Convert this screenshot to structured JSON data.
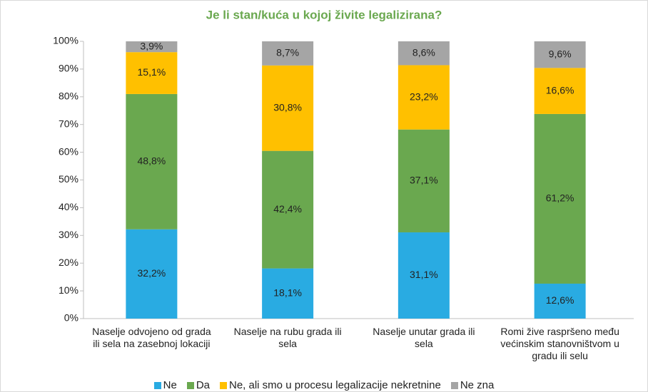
{
  "chart_data": {
    "type": "stacked_bar",
    "title": "Je li stan/kuća u kojoj živite legalizirana?",
    "categories": [
      "Naselje odvojeno od grada ili sela na zasebnoj lokaciji",
      "Naselje na rubu grada ili sela",
      "Naselje unutar grada ili sela",
      "Romi žive raspršeno među većinskim stanovništvom u gradu ili selu"
    ],
    "series": [
      {
        "name": "Ne",
        "color": "#29abe2",
        "values": [
          32.2,
          18.1,
          31.1,
          12.6
        ],
        "value_labels": [
          "32,2%",
          "18,1%",
          "31,1%",
          "12,6%"
        ]
      },
      {
        "name": "Da",
        "color": "#6aa84f",
        "values": [
          48.8,
          42.4,
          37.1,
          61.2
        ],
        "value_labels": [
          "48,8%",
          "42,4%",
          "37,1%",
          "61,2%"
        ]
      },
      {
        "name": "Ne, ali smo u procesu legalizacije nekretnine",
        "color": "#ffc000",
        "values": [
          15.1,
          30.8,
          23.2,
          16.6
        ],
        "value_labels": [
          "15,1%",
          "30,8%",
          "23,2%",
          "16,6%"
        ]
      },
      {
        "name": "Ne zna",
        "color": "#a5a5a5",
        "values": [
          3.9,
          8.7,
          8.6,
          9.6
        ],
        "value_labels": [
          "3,9%",
          "8,7%",
          "8,6%",
          "9,6%"
        ]
      }
    ],
    "ylim": [
      0,
      100
    ],
    "yticks": [
      {
        "value": 0,
        "label": "0%"
      },
      {
        "value": 10,
        "label": "10%"
      },
      {
        "value": 20,
        "label": "20%"
      },
      {
        "value": 30,
        "label": "30%"
      },
      {
        "value": 40,
        "label": "40%"
      },
      {
        "value": 50,
        "label": "50%"
      },
      {
        "value": 60,
        "label": "60%"
      },
      {
        "value": 70,
        "label": "70%"
      },
      {
        "value": 80,
        "label": "80%"
      },
      {
        "value": 90,
        "label": "90%"
      },
      {
        "value": 100,
        "label": "100%"
      }
    ],
    "legend": "bottom"
  }
}
